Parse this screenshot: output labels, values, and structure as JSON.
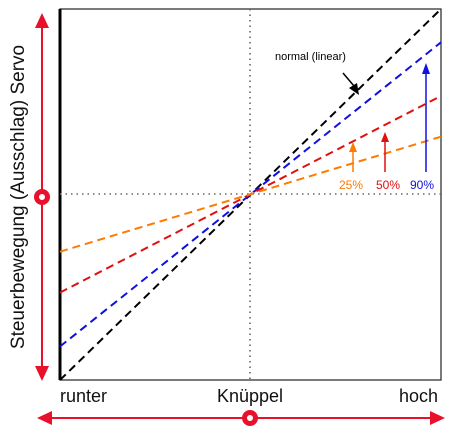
{
  "chart_data": {
    "type": "line",
    "title": "",
    "xlabel": "Knüppel",
    "ylabel": "Steuerbewegung (Ausschlag) Servo",
    "x_tick_labels": [
      "runter",
      "Knüppel",
      "hoch"
    ],
    "xlim": [
      -1,
      1
    ],
    "ylim": [
      -1,
      1
    ],
    "center_crosshair": true,
    "series": [
      {
        "name": "normal (linear)",
        "color": "#000000",
        "x": [
          -1,
          1
        ],
        "y": [
          -1.0,
          1.0
        ]
      },
      {
        "name": "90%",
        "color": "#1010e0",
        "x": [
          -1,
          1
        ],
        "y": [
          -0.82,
          0.82
        ]
      },
      {
        "name": "50%",
        "color": "#e01010",
        "x": [
          -1,
          1
        ],
        "y": [
          -0.53,
          0.53
        ]
      },
      {
        "name": "25%",
        "color": "#ff7a00",
        "x": [
          -1,
          1
        ],
        "y": [
          -0.31,
          0.31
        ]
      }
    ]
  },
  "colors": {
    "arrow": "#e8102a",
    "dotted": "#666666"
  }
}
